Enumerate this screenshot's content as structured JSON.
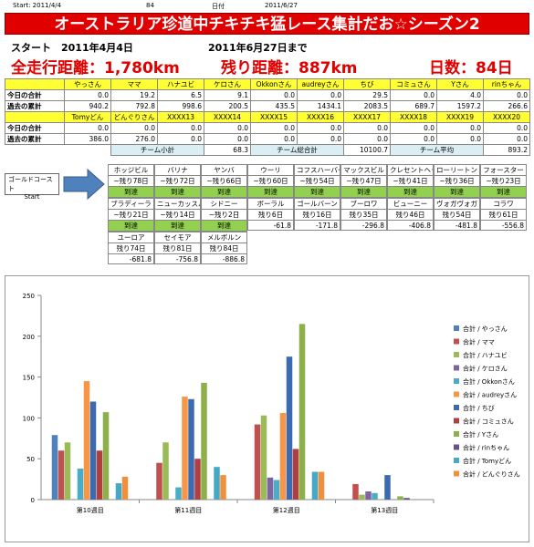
{
  "top": {
    "start": "Start: 2011/4/4",
    "days": "84",
    "date_label": "日付",
    "date": "2011/6/27"
  },
  "title": "オーストラリア珍道中チキチキ猛レース集計だお☆シーズン2",
  "summary": {
    "start": "スタート　2011年4月4日",
    "until": "2011年6月27日まで",
    "total": "全走行距離：1,780km",
    "remaining": "残り距離：887km",
    "days": "日数：84日"
  },
  "table": {
    "blocks": [
      {
        "header": [
          "やっさん",
          "ママ",
          "ハナユビ",
          "ケロさん",
          "Okkonさん",
          "audreyさん",
          "ちび",
          "コミュさん",
          "Yさん",
          "rinちゃん"
        ],
        "rows": [
          {
            "label": "今日の合計",
            "cells": [
              "0.0",
              "19.2",
              "6.5",
              "9.1",
              "0.0",
              "0.0",
              "29.5",
              "0.0",
              "4.0",
              "0.0"
            ]
          },
          {
            "label": "過去の累計",
            "cells": [
              "940.2",
              "792.8",
              "998.6",
              "200.5",
              "435.5",
              "1434.1",
              "2083.5",
              "689.7",
              "1597.2",
              "266.6"
            ]
          }
        ]
      },
      {
        "header": [
          "Tomyどん",
          "どんぐりさん",
          "XXXX13",
          "XXXX14",
          "XXXX15",
          "XXXX16",
          "XXXX17",
          "XXXX18",
          "XXXX19",
          "XXXX20"
        ],
        "rows": [
          {
            "label": "今日の合計",
            "cells": [
              "0.0",
              "0.0",
              "0.0",
              "0.0",
              "0.0",
              "0.0",
              "0.0",
              "0.0",
              "0.0",
              "0.0"
            ]
          },
          {
            "label": "過去の累計",
            "cells": [
              "386.0",
              "276.0",
              "0.0",
              "0.0",
              "0.0",
              "0.0",
              "0.0",
              "0.0",
              "0.0",
              "0.0"
            ]
          }
        ]
      }
    ],
    "team": [
      {
        "label": "チーム小計",
        "value": "68.3"
      },
      {
        "label": "チーム総合計",
        "value": "10100.7"
      },
      {
        "label": "チーム平均",
        "value": "893.2"
      }
    ]
  },
  "route": {
    "start": [
      "ゴールドコースト",
      "Start"
    ],
    "stops": [
      {
        "name": "ホッジビル",
        "remaining": "~残り78日",
        "status": "到達"
      },
      {
        "name": "バリナ",
        "remaining": "~残り72日",
        "status": "到達"
      },
      {
        "name": "ヤンバ",
        "remaining": "~残り66日",
        "status": "到達"
      },
      {
        "name": "ウーリ",
        "remaining": "~残り60日",
        "status": "到達"
      },
      {
        "name": "コフスハーバー",
        "remaining": "~残り54日",
        "status": "到達"
      },
      {
        "name": "マックスビル",
        "remaining": "~残り47日",
        "status": "到達"
      },
      {
        "name": "クレセントヘッド",
        "remaining": "~残り41日",
        "status": "到達"
      },
      {
        "name": "ローリートン",
        "remaining": "~残り36日",
        "status": "到達"
      },
      {
        "name": "フォースター",
        "remaining": "~残り23日",
        "status": "到達"
      },
      {
        "name": "ブラディーラ",
        "remaining": "~残り21日",
        "status": "到達"
      },
      {
        "name": "ニューカッスル",
        "remaining": "~残り14日",
        "status": "到達"
      },
      {
        "name": "シドニー",
        "remaining": "~残り2日",
        "status": "到達"
      },
      {
        "name": "ボーラル",
        "remaining": "残り6日",
        "status": "-61.8"
      },
      {
        "name": "ゴールバーン",
        "remaining": "残り16日",
        "status": "-171.8"
      },
      {
        "name": "ブーロワ",
        "remaining": "残り35日",
        "status": "-296.8"
      },
      {
        "name": "ビューニー",
        "remaining": "残り46日",
        "status": "-406.8"
      },
      {
        "name": "ヴォガヴォガ",
        "remaining": "残り54日",
        "status": "-481.8"
      },
      {
        "name": "コラワ",
        "remaining": "残り61日",
        "status": "-556.8"
      },
      {
        "name": "ユーロア",
        "remaining": "残り74日",
        "status": "-681.8"
      },
      {
        "name": "セイモア",
        "remaining": "残り81日",
        "status": "-756.8"
      },
      {
        "name": "メルボルン",
        "remaining": "残り84日",
        "status": "-886.8"
      }
    ]
  },
  "chart_data": {
    "type": "bar",
    "categories": [
      "第10週目",
      "第11週目",
      "第12週目",
      "第13週目"
    ],
    "ylim": [
      0,
      250
    ],
    "yticks": [
      0,
      50,
      100,
      150,
      200,
      250
    ],
    "legend": "right",
    "series": [
      {
        "name": "合計 / やっさん",
        "color": "#4f81bd",
        "values": [
          79,
          0,
          0,
          0
        ]
      },
      {
        "name": "合計 / ママ",
        "color": "#c0504d",
        "values": [
          60,
          45,
          92,
          19
        ]
      },
      {
        "name": "合計 / ハナユビ",
        "color": "#9bbb59",
        "values": [
          70,
          70,
          103,
          6
        ]
      },
      {
        "name": "合計 / ケロさん",
        "color": "#8064a2",
        "values": [
          0,
          0,
          27,
          10
        ]
      },
      {
        "name": "合計 / Okkonさん",
        "color": "#4bacc6",
        "values": [
          38,
          15,
          24,
          8
        ]
      },
      {
        "name": "合計 / audreyさん",
        "color": "#f79646",
        "values": [
          145,
          126,
          106,
          0
        ]
      },
      {
        "name": "合計 / ちび",
        "color": "#3c6ab0",
        "values": [
          120,
          123,
          175,
          30
        ]
      },
      {
        "name": "合計 / コミュさん",
        "color": "#b04040",
        "values": [
          60,
          50,
          62,
          0
        ]
      },
      {
        "name": "合計 / Yさん",
        "color": "#8db04a",
        "values": [
          107,
          143,
          215,
          4
        ]
      },
      {
        "name": "合計 / rinちゃん",
        "color": "#6b4f8e",
        "values": [
          0,
          0,
          0,
          2
        ]
      },
      {
        "name": "合計 / Tomyどん",
        "color": "#46a8c4",
        "values": [
          20,
          40,
          34,
          0
        ]
      },
      {
        "name": "合計 / どんぐりさん",
        "color": "#f0903e",
        "values": [
          28,
          30,
          34,
          0
        ]
      }
    ]
  }
}
